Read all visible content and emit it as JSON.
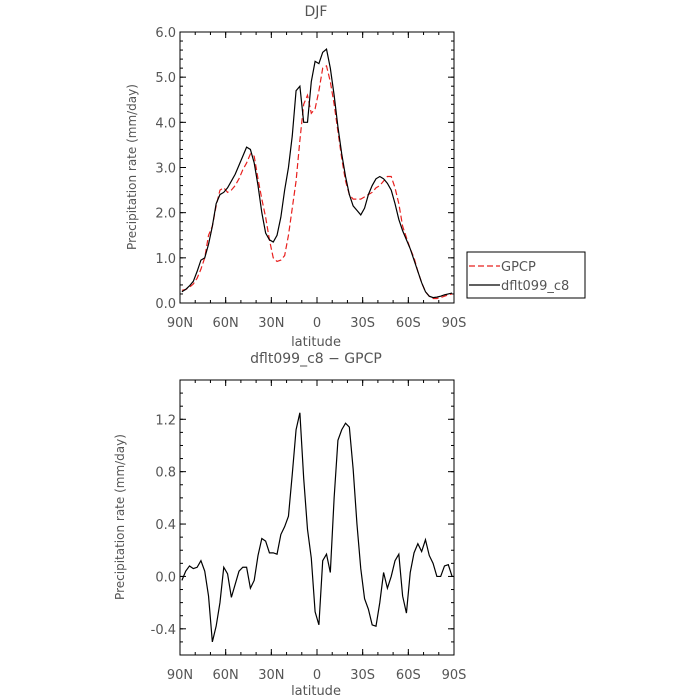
{
  "chart_data": [
    {
      "type": "line",
      "title": "DJF",
      "xlabel": "latitude",
      "ylabel": "Precipitation rate  (mm/day)",
      "x_tick_labels": [
        "90N",
        "60N",
        "30N",
        "0",
        "30S",
        "60S",
        "90S"
      ],
      "y_tick_labels": [
        "0.0",
        "1.0",
        "2.0",
        "3.0",
        "4.0",
        "5.0",
        "6.0"
      ],
      "xlim": [
        -90,
        90
      ],
      "ylim": [
        0,
        6
      ],
      "x_note": "x in degrees latitude, north positive on the left (90N → 90S)",
      "legend": {
        "placement": "right",
        "entries": [
          "GPCP",
          "dflt099_c8"
        ]
      },
      "series": [
        {
          "name": "GPCP",
          "color": "#e8201e",
          "dash": "dashed",
          "x": [
            -88.75,
            -86.25,
            -83.75,
            -81.25,
            -78.75,
            -76.25,
            -73.75,
            -71.25,
            -68.75,
            -66.25,
            -63.75,
            -61.25,
            -58.75,
            -56.25,
            -53.75,
            -51.25,
            -48.75,
            -46.25,
            -43.75,
            -41.25,
            -38.75,
            -36.25,
            -33.75,
            -31.25,
            -28.75,
            -26.25,
            -23.75,
            -21.25,
            -18.75,
            -16.25,
            -13.75,
            -11.25,
            -8.75,
            -6.25,
            -3.75,
            -1.25,
            1.25,
            3.75,
            6.25,
            8.75,
            11.25,
            13.75,
            16.25,
            18.75,
            21.25,
            23.75,
            26.25,
            28.75,
            31.25,
            33.75,
            36.25,
            38.75,
            41.25,
            43.75,
            46.25,
            48.75,
            51.25,
            53.75,
            56.25,
            58.75,
            61.25,
            63.75,
            66.25,
            68.75,
            71.25,
            73.75,
            76.25,
            78.75,
            81.25,
            83.75,
            86.25,
            88.75
          ],
          "values": [
            0.28,
            0.3,
            0.35,
            0.42,
            0.55,
            0.75,
            1.0,
            1.5,
            1.7,
            2.15,
            2.5,
            2.55,
            2.45,
            2.5,
            2.6,
            2.75,
            2.95,
            3.1,
            3.3,
            3.25,
            2.75,
            2.3,
            1.9,
            1.4,
            1.0,
            0.92,
            0.95,
            1.05,
            1.5,
            2.1,
            2.7,
            3.6,
            4.4,
            4.6,
            4.2,
            4.3,
            4.7,
            5.2,
            5.25,
            4.9,
            4.4,
            3.8,
            3.2,
            2.7,
            2.4,
            2.3,
            2.3,
            2.3,
            2.35,
            2.4,
            2.45,
            2.55,
            2.6,
            2.7,
            2.8,
            2.8,
            2.55,
            2.2,
            1.7,
            1.45,
            1.2,
            1.0,
            0.7,
            0.45,
            0.25,
            0.15,
            0.1,
            0.1,
            0.12,
            0.15,
            0.18,
            0.2
          ]
        },
        {
          "name": "dflt099_c8",
          "color": "#000000",
          "dash": "solid",
          "x": [
            -88.75,
            -86.25,
            -83.75,
            -81.25,
            -78.75,
            -76.25,
            -73.75,
            -71.25,
            -68.75,
            -66.25,
            -63.75,
            -61.25,
            -58.75,
            -56.25,
            -53.75,
            -51.25,
            -48.75,
            -46.25,
            -43.75,
            -41.25,
            -38.75,
            -36.25,
            -33.75,
            -31.25,
            -28.75,
            -26.25,
            -23.75,
            -21.25,
            -18.75,
            -16.25,
            -13.75,
            -11.25,
            -8.75,
            -6.25,
            -3.75,
            -1.25,
            1.25,
            3.75,
            6.25,
            8.75,
            11.25,
            13.75,
            16.25,
            18.75,
            21.25,
            23.75,
            26.25,
            28.75,
            31.25,
            33.75,
            36.25,
            38.75,
            41.25,
            43.75,
            46.25,
            48.75,
            51.25,
            53.75,
            56.25,
            58.75,
            61.25,
            63.75,
            66.25,
            68.75,
            71.25,
            73.75,
            76.25,
            78.75,
            81.25,
            83.75,
            86.25,
            88.75
          ],
          "values": [
            0.25,
            0.3,
            0.38,
            0.48,
            0.7,
            0.95,
            1.0,
            1.3,
            1.7,
            2.2,
            2.4,
            2.45,
            2.55,
            2.7,
            2.85,
            3.05,
            3.25,
            3.45,
            3.4,
            3.1,
            2.6,
            2.0,
            1.55,
            1.4,
            1.35,
            1.5,
            1.9,
            2.5,
            3.0,
            3.7,
            4.7,
            4.8,
            4.0,
            4.0,
            4.9,
            5.35,
            5.3,
            5.55,
            5.62,
            5.2,
            4.6,
            3.9,
            3.3,
            2.8,
            2.4,
            2.15,
            2.05,
            1.95,
            2.1,
            2.4,
            2.6,
            2.75,
            2.8,
            2.75,
            2.65,
            2.5,
            2.2,
            1.85,
            1.6,
            1.4,
            1.2,
            0.95,
            0.7,
            0.45,
            0.25,
            0.15,
            0.12,
            0.13,
            0.15,
            0.18,
            0.2,
            0.22
          ]
        }
      ]
    },
    {
      "type": "line",
      "title": "dflt099_c8 − GPCP",
      "xlabel": "latitude",
      "ylabel": "Precipitation rate  (mm/day)",
      "x_tick_labels": [
        "90N",
        "60N",
        "30N",
        "0",
        "30S",
        "60S",
        "90S"
      ],
      "y_tick_labels": [
        "-0.4",
        "0.0",
        "0.4",
        "0.8",
        "1.2"
      ],
      "xlim": [
        -90,
        90
      ],
      "ylim": [
        -0.6,
        1.5
      ],
      "series": [
        {
          "name": "dflt099_c8 - GPCP",
          "color": "#000000",
          "dash": "solid",
          "x": [
            -88.75,
            -86.25,
            -83.75,
            -81.25,
            -78.75,
            -76.25,
            -73.75,
            -71.25,
            -68.75,
            -66.25,
            -63.75,
            -61.25,
            -58.75,
            -56.25,
            -53.75,
            -51.25,
            -48.75,
            -46.25,
            -43.75,
            -41.25,
            -38.75,
            -36.25,
            -33.75,
            -31.25,
            -28.75,
            -26.25,
            -23.75,
            -21.25,
            -18.75,
            -16.25,
            -13.75,
            -11.25,
            -8.75,
            -6.25,
            -3.75,
            -1.25,
            1.25,
            3.75,
            6.25,
            8.75,
            11.25,
            13.75,
            16.25,
            18.75,
            21.25,
            23.75,
            26.25,
            28.75,
            31.25,
            33.75,
            36.25,
            38.75,
            41.25,
            43.75,
            46.25,
            48.75,
            51.25,
            53.75,
            56.25,
            58.75,
            61.25,
            63.75,
            66.25,
            68.75,
            71.25,
            73.75,
            76.25,
            78.75,
            81.25,
            83.75,
            86.25,
            88.75
          ],
          "values": [
            -0.03,
            0.04,
            0.08,
            0.06,
            0.07,
            0.12,
            0.04,
            -0.15,
            -0.5,
            -0.38,
            -0.2,
            0.07,
            0.02,
            -0.16,
            -0.06,
            0.04,
            0.07,
            0.07,
            -0.09,
            -0.03,
            0.16,
            0.29,
            0.27,
            0.18,
            0.18,
            0.17,
            0.32,
            0.38,
            0.46,
            0.78,
            1.12,
            1.25,
            0.75,
            0.36,
            0.14,
            -0.27,
            -0.37,
            0.12,
            0.17,
            0.03,
            0.6,
            1.04,
            1.12,
            1.17,
            1.14,
            0.82,
            0.4,
            0.06,
            -0.17,
            -0.25,
            -0.37,
            -0.38,
            -0.2,
            0.03,
            -0.09,
            0.0,
            0.12,
            0.17,
            -0.15,
            -0.28,
            0.03,
            0.18,
            0.25,
            0.19,
            0.28,
            0.16,
            0.1,
            0.0,
            0.0,
            0.08,
            0.09,
            0.0
          ]
        }
      ]
    }
  ]
}
